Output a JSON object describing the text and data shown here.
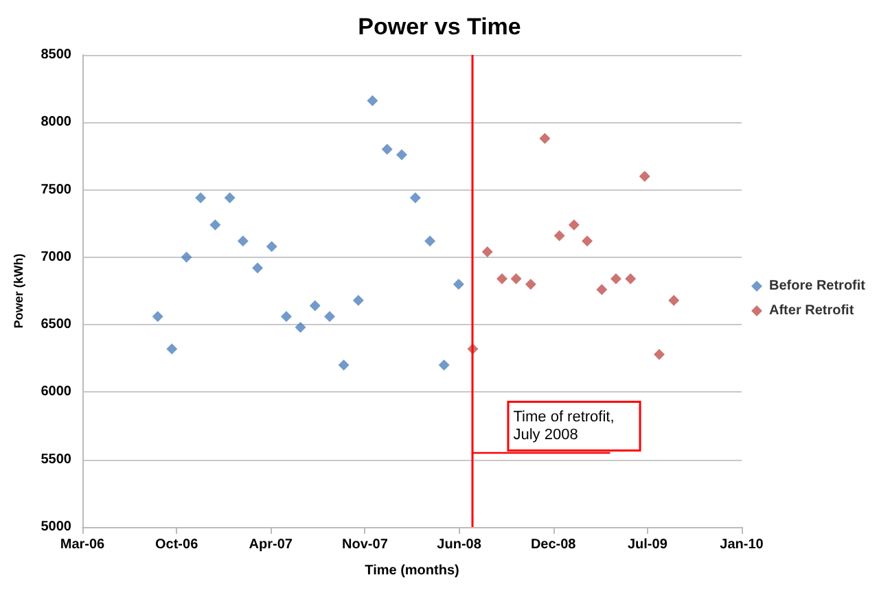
{
  "chart_data": {
    "type": "scatter",
    "title": "Power vs Time",
    "xlabel": "Time (months)",
    "ylabel": "Power (kWh)",
    "series": [
      {
        "name": "Before Retrofit",
        "color": "#4f81bd",
        "x": [
          "2006-09",
          "2006-10",
          "2006-11",
          "2006-12",
          "2007-01",
          "2007-02",
          "2007-03",
          "2007-04",
          "2007-05",
          "2007-06",
          "2007-07",
          "2007-08",
          "2007-09",
          "2007-10",
          "2007-11",
          "2007-12",
          "2008-01",
          "2008-02",
          "2008-03",
          "2008-04",
          "2008-05",
          "2008-06"
        ],
        "values": [
          6560,
          6320,
          7000,
          7440,
          7240,
          7440,
          7120,
          6920,
          7080,
          6560,
          6480,
          6640,
          6560,
          6200,
          6680,
          8160,
          7800,
          7760,
          7440,
          7120,
          6200,
          6800
        ]
      },
      {
        "name": "After Retrofit",
        "color": "#c0504d",
        "x": [
          "2008-07",
          "2008-08",
          "2008-09",
          "2008-10",
          "2008-11",
          "2008-12",
          "2009-01",
          "2009-02",
          "2009-03",
          "2009-04",
          "2009-05",
          "2009-06",
          "2009-07",
          "2009-08",
          "2009-09"
        ],
        "values": [
          6320,
          7040,
          6840,
          6840,
          6800,
          7880,
          7160,
          7240,
          7120,
          6760,
          6840,
          6840,
          7600,
          6280,
          6680
        ]
      }
    ],
    "xlim": [
      "2006-03-25",
      "2010-01-23"
    ],
    "xticks": [
      {
        "value": "2006-03-25",
        "label": "Mar-06"
      },
      {
        "value": "2006-10-11",
        "label": "Oct-06"
      },
      {
        "value": "2007-04-29",
        "label": "Apr-07"
      },
      {
        "value": "2007-11-15",
        "label": "Nov-07"
      },
      {
        "value": "2008-06-02",
        "label": "Jun-08"
      },
      {
        "value": "2008-12-19",
        "label": "Dec-08"
      },
      {
        "value": "2009-07-07",
        "label": "Jul-09"
      },
      {
        "value": "2010-01-23",
        "label": "Jan-10"
      }
    ],
    "ylim": [
      5000,
      8500
    ],
    "yticks": [
      5000,
      5500,
      6000,
      6500,
      7000,
      7500,
      8000,
      8500
    ],
    "ref_lines": [
      {
        "axis": "x",
        "value": "2008-07-01",
        "label": "Time of retrofit,\nJuly 2008",
        "color": "#ff0000"
      }
    ],
    "grid": "y",
    "legend": "right",
    "marker": "diamond"
  }
}
